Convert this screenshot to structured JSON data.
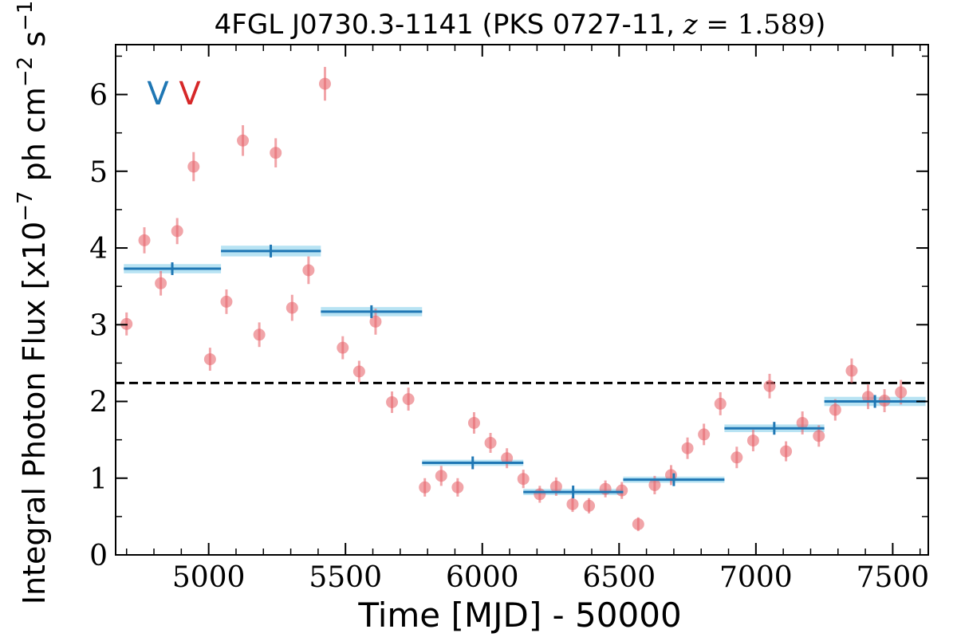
{
  "chart_data": {
    "type": "scatter",
    "title": "4FGL J0730.3-1141 (PKS 0727-11, z = 1.589)",
    "title_parts": {
      "prefix": "4FGL J0730.3-1141 (PKS 0727-11, ",
      "z_var": "z",
      "z_eq": " = 1.589",
      "suffix": ")"
    },
    "xlabel": "Time [MJD] - 50000",
    "ylabel_parts": {
      "prefix": "Integral Photon Flux [x10",
      "exp1": "−7",
      "mid": " ph cm",
      "exp2": "−2",
      "mid2": " s",
      "exp3": "−1",
      "suffix": "]"
    },
    "xlim": [
      4660,
      7630
    ],
    "ylim": [
      0,
      6.65
    ],
    "xticks": [
      5000,
      5500,
      6000,
      6500,
      7000,
      7500
    ],
    "yticks": [
      0,
      1,
      2,
      3,
      4,
      5,
      6
    ],
    "grid": false,
    "legend": "none",
    "reference_line": {
      "y": 2.24,
      "style": "dashed",
      "color": "#000000"
    },
    "markers_top_left": [
      {
        "text": "V",
        "color": "#1f77b4"
      },
      {
        "text": "V",
        "color": "#d62728"
      }
    ],
    "series": [
      {
        "kind": "points",
        "color": "#e8686f",
        "x": [
          4700,
          4765,
          4825,
          4885,
          4945,
          5005,
          5065,
          5125,
          5185,
          5245,
          5305,
          5365,
          5425,
          5490,
          5550,
          5610,
          5670,
          5730,
          5790,
          5850,
          5910,
          5970,
          6030,
          6090,
          6150,
          6210,
          6270,
          6330,
          6390,
          6450,
          6510,
          6570,
          6630,
          6690,
          6750,
          6810,
          6870,
          6930,
          6990,
          7050,
          7110,
          7170,
          7230,
          7290,
          7350,
          7410,
          7470,
          7530
        ],
        "y": [
          3.01,
          4.1,
          3.54,
          4.22,
          5.06,
          2.55,
          3.3,
          5.4,
          2.87,
          5.24,
          3.22,
          3.71,
          6.14,
          2.7,
          2.39,
          3.04,
          1.99,
          2.03,
          0.88,
          1.03,
          0.88,
          1.72,
          1.46,
          1.26,
          0.99,
          0.79,
          0.89,
          0.66,
          0.64,
          0.86,
          0.84,
          0.4,
          0.91,
          1.04,
          1.39,
          1.57,
          1.97,
          1.27,
          1.49,
          2.2,
          1.35,
          1.72,
          1.55,
          1.89,
          2.4,
          2.06,
          2.01,
          2.12
        ],
        "yerr": [
          0.15,
          0.17,
          0.16,
          0.17,
          0.19,
          0.15,
          0.16,
          0.2,
          0.16,
          0.19,
          0.17,
          0.18,
          0.22,
          0.15,
          0.14,
          0.17,
          0.14,
          0.15,
          0.12,
          0.13,
          0.12,
          0.14,
          0.13,
          0.13,
          0.12,
          0.11,
          0.12,
          0.1,
          0.1,
          0.11,
          0.11,
          0.09,
          0.12,
          0.13,
          0.14,
          0.14,
          0.15,
          0.14,
          0.14,
          0.16,
          0.13,
          0.15,
          0.14,
          0.14,
          0.16,
          0.16,
          0.15,
          0.16
        ]
      },
      {
        "kind": "bins",
        "color": "#1f77b4",
        "band_color": "#a6dcf0",
        "bins": [
          {
            "x0": 4690,
            "x1": 5045,
            "y": 3.73,
            "err": 0.06,
            "xc": 4867
          },
          {
            "x0": 5045,
            "x1": 5410,
            "y": 3.96,
            "err": 0.07,
            "xc": 5227
          },
          {
            "x0": 5410,
            "x1": 5780,
            "y": 3.17,
            "err": 0.06,
            "xc": 5595
          },
          {
            "x0": 5780,
            "x1": 6150,
            "y": 1.2,
            "err": 0.04,
            "xc": 5965
          },
          {
            "x0": 6150,
            "x1": 6515,
            "y": 0.82,
            "err": 0.04,
            "xc": 6332
          },
          {
            "x0": 6515,
            "x1": 6885,
            "y": 0.98,
            "err": 0.04,
            "xc": 6700
          },
          {
            "x0": 6885,
            "x1": 7250,
            "y": 1.65,
            "err": 0.05,
            "xc": 7067
          },
          {
            "x0": 7250,
            "x1": 7620,
            "y": 2.0,
            "err": 0.06,
            "xc": 7435
          }
        ]
      }
    ]
  }
}
